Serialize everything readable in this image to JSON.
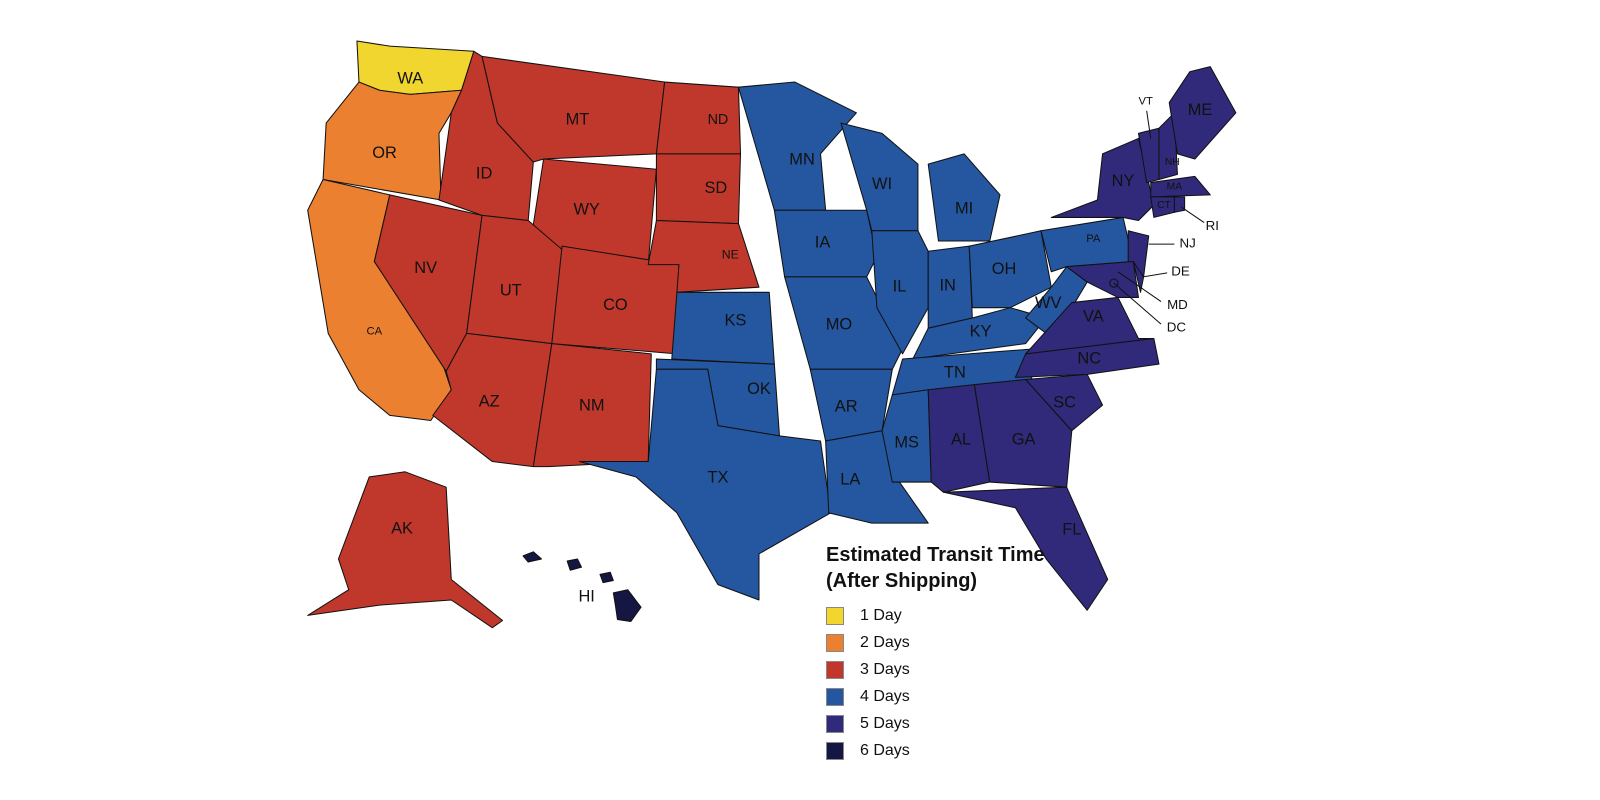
{
  "map": {
    "states": [
      {
        "abbr": "WA",
        "color": "#f0d62e"
      },
      {
        "abbr": "OR",
        "color": "#ea8030"
      },
      {
        "abbr": "CA",
        "color": "#ea8030"
      },
      {
        "abbr": "NV",
        "color": "#c0382b"
      },
      {
        "abbr": "ID",
        "color": "#c0382b"
      },
      {
        "abbr": "MT",
        "color": "#c0382b"
      },
      {
        "abbr": "WY",
        "color": "#c0382b"
      },
      {
        "abbr": "UT",
        "color": "#c0382b"
      },
      {
        "abbr": "CO",
        "color": "#c0382b"
      },
      {
        "abbr": "AZ",
        "color": "#c0382b"
      },
      {
        "abbr": "NM",
        "color": "#c0382b"
      },
      {
        "abbr": "ND",
        "color": "#c0382b"
      },
      {
        "abbr": "SD",
        "color": "#c0382b"
      },
      {
        "abbr": "NE",
        "color": "#c0382b"
      },
      {
        "abbr": "AK",
        "color": "#c0382b"
      },
      {
        "abbr": "KS",
        "color": "#24579f"
      },
      {
        "abbr": "OK",
        "color": "#24579f"
      },
      {
        "abbr": "TX",
        "color": "#24579f"
      },
      {
        "abbr": "MN",
        "color": "#24579f"
      },
      {
        "abbr": "IA",
        "color": "#24579f"
      },
      {
        "abbr": "MO",
        "color": "#24579f"
      },
      {
        "abbr": "AR",
        "color": "#24579f"
      },
      {
        "abbr": "LA",
        "color": "#24579f"
      },
      {
        "abbr": "WI",
        "color": "#24579f"
      },
      {
        "abbr": "IL",
        "color": "#24579f"
      },
      {
        "abbr": "MI",
        "color": "#24579f"
      },
      {
        "abbr": "IN",
        "color": "#24579f"
      },
      {
        "abbr": "OH",
        "color": "#24579f"
      },
      {
        "abbr": "KY",
        "color": "#24579f"
      },
      {
        "abbr": "TN",
        "color": "#24579f"
      },
      {
        "abbr": "MS",
        "color": "#24579f"
      },
      {
        "abbr": "WV",
        "color": "#24579f"
      },
      {
        "abbr": "PA",
        "color": "#24579f"
      },
      {
        "abbr": "AL",
        "color": "#312a7a"
      },
      {
        "abbr": "GA",
        "color": "#312a7a"
      },
      {
        "abbr": "FL",
        "color": "#312a7a"
      },
      {
        "abbr": "SC",
        "color": "#312a7a"
      },
      {
        "abbr": "NC",
        "color": "#312a7a"
      },
      {
        "abbr": "VA",
        "color": "#312a7a"
      },
      {
        "abbr": "NY",
        "color": "#312a7a"
      },
      {
        "abbr": "NJ",
        "color": "#312a7a"
      },
      {
        "abbr": "MD",
        "color": "#312a7a"
      },
      {
        "abbr": "DE",
        "color": "#312a7a"
      },
      {
        "abbr": "DC",
        "color": "#312a7a"
      },
      {
        "abbr": "VT",
        "color": "#312a7a"
      },
      {
        "abbr": "NH",
        "color": "#312a7a"
      },
      {
        "abbr": "ME",
        "color": "#312a7a"
      },
      {
        "abbr": "MA",
        "color": "#312a7a"
      },
      {
        "abbr": "CT",
        "color": "#312a7a"
      },
      {
        "abbr": "RI",
        "color": "#312a7a"
      },
      {
        "abbr": "HI",
        "color": "#151642"
      }
    ],
    "legend": {
      "title": "Estimated Transit Time (After Shipping)",
      "items": [
        {
          "label": "1 Day",
          "color": "#f0d62e"
        },
        {
          "label": "2 Days",
          "color": "#ea8030"
        },
        {
          "label": "3 Days",
          "color": "#c0382b"
        },
        {
          "label": "4 Days",
          "color": "#24579f"
        },
        {
          "label": "5 Days",
          "color": "#312a7a"
        },
        {
          "label": "6 Days",
          "color": "#151642"
        }
      ]
    }
  }
}
